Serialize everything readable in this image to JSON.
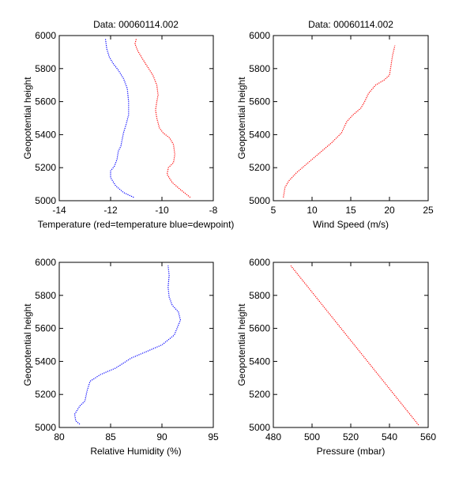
{
  "chart_data": [
    {
      "type": "line",
      "title": "Data: 00060114.002",
      "xlabel": "Temperature (red=temperature blue=dewpoint)",
      "ylabel": "Geopotential height",
      "xlim": [
        -14,
        -8
      ],
      "ylim": [
        5000,
        6000
      ],
      "xticks": [
        -14,
        -12,
        -10,
        -8
      ],
      "yticks": [
        5000,
        5200,
        5400,
        5600,
        5800,
        6000
      ],
      "series": [
        {
          "name": "temperature",
          "color": "#ff0000",
          "x": [
            -8.9,
            -9.3,
            -9.6,
            -9.8,
            -9.75,
            -9.55,
            -9.5,
            -9.55,
            -9.7,
            -9.95,
            -10.1,
            -10.2,
            -10.25,
            -10.2,
            -10.15,
            -10.2,
            -10.35,
            -10.6,
            -10.8,
            -10.95,
            -11.05,
            -11.0
          ],
          "y": [
            5020,
            5070,
            5110,
            5160,
            5200,
            5230,
            5280,
            5340,
            5380,
            5410,
            5440,
            5500,
            5550,
            5600,
            5640,
            5700,
            5760,
            5820,
            5870,
            5910,
            5950,
            5980
          ]
        },
        {
          "name": "dewpoint",
          "color": "#0000ff",
          "x": [
            -11.1,
            -11.5,
            -11.8,
            -12.0,
            -12.0,
            -11.85,
            -11.75,
            -11.7,
            -11.6,
            -11.55,
            -11.5,
            -11.4,
            -11.3,
            -11.3,
            -11.35,
            -11.5,
            -11.7,
            -11.9,
            -12.05,
            -12.15,
            -12.2
          ],
          "y": [
            5020,
            5050,
            5090,
            5140,
            5180,
            5210,
            5250,
            5300,
            5330,
            5370,
            5410,
            5460,
            5520,
            5600,
            5680,
            5740,
            5790,
            5830,
            5870,
            5920,
            5980
          ]
        }
      ]
    },
    {
      "type": "line",
      "title": "Data: 00060114.002",
      "xlabel": "Wind Speed (m/s)",
      "ylabel": "Geopotential height",
      "xlim": [
        5,
        25
      ],
      "ylim": [
        5000,
        6000
      ],
      "xticks": [
        5,
        10,
        15,
        20,
        25
      ],
      "yticks": [
        5000,
        5200,
        5400,
        5600,
        5800,
        6000
      ],
      "series": [
        {
          "name": "wind speed",
          "color": "#ff0000",
          "x": [
            6.3,
            6.5,
            7.0,
            8.0,
            9.5,
            11.0,
            12.5,
            13.8,
            14.5,
            15.3,
            16.3,
            16.8,
            17.3,
            18.2,
            19.3,
            20.0,
            20.2,
            20.4,
            20.7
          ],
          "y": [
            5020,
            5080,
            5120,
            5170,
            5230,
            5290,
            5350,
            5410,
            5480,
            5520,
            5560,
            5600,
            5650,
            5700,
            5730,
            5760,
            5820,
            5880,
            5940
          ]
        }
      ]
    },
    {
      "type": "line",
      "title": "",
      "xlabel": "Relative Humidity (%)",
      "ylabel": "Geopotential height",
      "xlim": [
        80,
        95
      ],
      "ylim": [
        5000,
        6000
      ],
      "xticks": [
        80,
        85,
        90,
        95
      ],
      "yticks": [
        5000,
        5200,
        5400,
        5600,
        5800,
        6000
      ],
      "series": [
        {
          "name": "relative humidity",
          "color": "#0000ff",
          "x": [
            82.0,
            81.6,
            81.5,
            82.0,
            82.5,
            82.7,
            83.0,
            84.0,
            85.5,
            87.0,
            88.5,
            90.0,
            91.2,
            91.8,
            91.6,
            91.0,
            90.7,
            90.6,
            90.7,
            90.6
          ],
          "y": [
            5020,
            5040,
            5080,
            5130,
            5160,
            5220,
            5280,
            5320,
            5360,
            5420,
            5460,
            5500,
            5560,
            5650,
            5700,
            5740,
            5790,
            5850,
            5920,
            5980
          ]
        }
      ]
    },
    {
      "type": "line",
      "title": "",
      "xlabel": "Pressure (mbar)",
      "ylabel": "Geopotential height",
      "xlim": [
        480,
        560
      ],
      "ylim": [
        5000,
        6000
      ],
      "xticks": [
        480,
        500,
        520,
        540,
        560
      ],
      "yticks": [
        5000,
        5200,
        5400,
        5600,
        5800,
        6000
      ],
      "series": [
        {
          "name": "pressure",
          "color": "#ff0000",
          "x": [
            555.0,
            489.0
          ],
          "y": [
            5015,
            5980
          ]
        }
      ]
    }
  ]
}
